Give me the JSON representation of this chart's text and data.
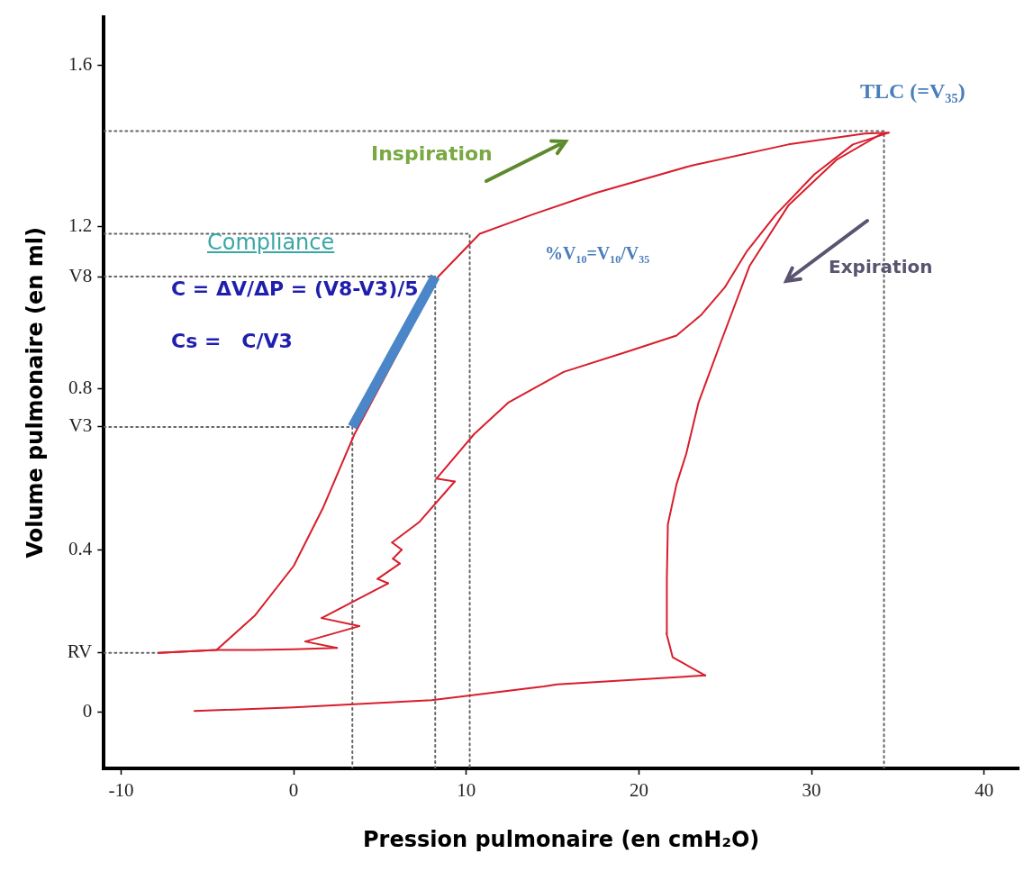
{
  "chart_data": {
    "type": "line",
    "xlabel": "Pression pulmonaire (en cmH₂O)",
    "ylabel": "Volume pulmonaire (en ml)",
    "xlim": [
      -11,
      42
    ],
    "ylim": [
      -0.14,
      1.72
    ],
    "xticks": [
      -10,
      0,
      10,
      20,
      30,
      40
    ],
    "yticks": [
      0,
      {
        "value": 0.146,
        "label": "RV"
      },
      0.4,
      {
        "value": 0.705,
        "label": "V3"
      },
      0.8,
      {
        "value": 1.077,
        "label": "V8"
      },
      1.2,
      1.6
    ],
    "grid": false,
    "legend": false,
    "marker": "none",
    "series": [
      {
        "color": "#4a86c8",
        "line_style": "solid",
        "x": [
          3.4,
          8.2
        ],
        "values": [
          0.705,
          1.077
        ]
      },
      {
        "color": "#d81e2c",
        "line_style": "solid",
        "x": [
          -7.82,
          -4.47,
          -2.23,
          0,
          2.51
        ],
        "values": [
          0.146,
          0.153,
          0.153,
          0.155,
          0.158
        ]
      },
      {
        "color": "#d81e2c",
        "line_style": "solid",
        "x": [
          0.67,
          2.51
        ],
        "values": [
          0.174,
          0.158
        ]
      },
      {
        "color": "#d81e2c",
        "line_style": "solid",
        "x": [
          0.67,
          3.8
        ],
        "values": [
          0.174,
          0.212
        ]
      },
      {
        "color": "#d81e2c",
        "line_style": "solid",
        "x": [
          1.62,
          3.8
        ],
        "values": [
          0.232,
          0.212
        ]
      },
      {
        "color": "#d81e2c",
        "line_style": "solid",
        "x": [
          1.62,
          5.47
        ],
        "values": [
          0.232,
          0.318
        ]
      },
      {
        "color": "#d81e2c",
        "line_style": "solid",
        "x": [
          4.86,
          5.47
        ],
        "values": [
          0.329,
          0.318
        ]
      },
      {
        "color": "#d81e2c",
        "line_style": "solid",
        "x": [
          4.86,
          6.15
        ],
        "values": [
          0.329,
          0.367
        ]
      },
      {
        "color": "#d81e2c",
        "line_style": "solid",
        "x": [
          5.75,
          6.15
        ],
        "values": [
          0.379,
          0.367
        ]
      },
      {
        "color": "#d81e2c",
        "line_style": "solid",
        "x": [
          5.75,
          6.26
        ],
        "values": [
          0.379,
          0.401
        ]
      },
      {
        "color": "#d81e2c",
        "line_style": "solid",
        "x": [
          5.7,
          6.26
        ],
        "values": [
          0.419,
          0.401
        ]
      },
      {
        "color": "#d81e2c",
        "line_style": "solid",
        "x": [
          5.7,
          7.26,
          9.33
        ],
        "values": [
          0.419,
          0.469,
          0.57
        ]
      },
      {
        "color": "#d81e2c",
        "line_style": "solid",
        "x": [
          8.27,
          9.33
        ],
        "values": [
          0.577,
          0.57
        ]
      },
      {
        "color": "#d81e2c",
        "line_style": "solid",
        "x": [
          8.27,
          10.45,
          12.46,
          15.64,
          19.39,
          22.18,
          23.63,
          24.97,
          26.26,
          27.93,
          30.17,
          32.4,
          34.47
        ],
        "values": [
          0.577,
          0.687,
          0.766,
          0.841,
          0.892,
          0.931,
          0.983,
          1.05,
          1.14,
          1.23,
          1.33,
          1.404,
          1.433
        ]
      },
      {
        "color": "#d81e2c",
        "line_style": "solid",
        "x": [
          -7.82,
          -4.47,
          -2.23,
          0,
          1.68,
          3.52,
          8.38,
          10.78,
          13.8,
          17.49,
          23.07,
          28.66,
          33.1,
          34.47
        ],
        "values": [
          0.146,
          0.153,
          0.239,
          0.361,
          0.503,
          0.687,
          1.077,
          1.183,
          1.23,
          1.284,
          1.352,
          1.404,
          1.431,
          1.433
        ]
      },
      {
        "color": "#d81e2c",
        "line_style": "solid",
        "x": [
          -5.75,
          0,
          7.99,
          14.5,
          15.25,
          23.85
        ],
        "values": [
          0.002,
          0.011,
          0.029,
          0.063,
          0.068,
          0.09
        ]
      },
      {
        "color": "#d81e2c",
        "line_style": "solid",
        "x": [
          21.6,
          21.96,
          23.85
        ],
        "values": [
          0.194,
          0.135,
          0.09
        ]
      },
      {
        "color": "#d81e2c",
        "line_style": "solid",
        "x": [
          21.6,
          21.62,
          21.68,
          22.18,
          22.74,
          23.46,
          24.75,
          26.42,
          28.66,
          31.45,
          34.08
        ],
        "values": [
          0.194,
          0.329,
          0.464,
          0.563,
          0.638,
          0.766,
          0.915,
          1.104,
          1.253,
          1.366,
          1.431
        ]
      },
      {
        "color": "#666666",
        "line_style": "dotted",
        "x": [
          -11,
          34.2,
          34.2
        ],
        "values": [
          1.437,
          1.437,
          -0.14
        ]
      },
      {
        "color": "#666666",
        "line_style": "dotted",
        "x": [
          -11,
          10.2,
          10.2
        ],
        "values": [
          1.183,
          1.183,
          -0.14
        ]
      },
      {
        "color": "#666666",
        "line_style": "dotted",
        "x": [
          -11,
          8.2,
          8.2
        ],
        "values": [
          1.077,
          1.077,
          -0.14
        ]
      },
      {
        "color": "#666666",
        "line_style": "dotted",
        "x": [
          -11,
          3.4,
          3.4
        ],
        "values": [
          0.705,
          0.705,
          -0.14
        ]
      },
      {
        "color": "#666666",
        "line_style": "dotted",
        "x": [
          -11,
          -7.82
        ],
        "values": [
          0.146,
          0.146
        ]
      }
    ],
    "annotations": [
      "TLC (=V₃₅)",
      "Inspiration",
      "Compliance",
      "%V₁₀=V₁₀/V₃₅",
      "Expiration",
      "C = ΔV/ΔP = (V8-V3)/5",
      "Cs =   C/V3"
    ]
  }
}
